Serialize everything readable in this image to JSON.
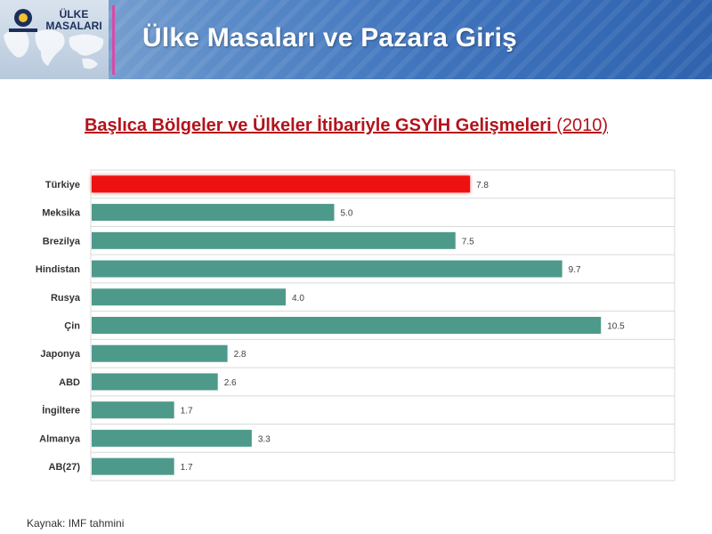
{
  "header": {
    "logo_text_line1": "ÜLKE",
    "logo_text_line2": "MASALARI",
    "title": "Ülke Masaları ve Pazara Giriş"
  },
  "chart_data": {
    "type": "bar",
    "orientation": "horizontal",
    "title": "Başlıca Bölgeler ve Ülkeler İtibariyle GSYİH Gelişmeleri",
    "title_suffix": "(2010)",
    "categories": [
      "Türkiye",
      "Meksika",
      "Brezilya",
      "Hindistan",
      "Rusya",
      "Çin",
      "Japonya",
      "ABD",
      "İngiltere",
      "Almanya",
      "AB(27)"
    ],
    "values": [
      7.8,
      5.0,
      7.5,
      9.7,
      4.0,
      10.5,
      2.8,
      2.6,
      1.7,
      3.3,
      1.7
    ],
    "labels": [
      "7.8",
      "5.0",
      "7.5",
      "9.7",
      "4.0",
      "10.5",
      "2.8",
      "2.6",
      "1.7",
      "3.3",
      "1.7"
    ],
    "highlight": "Türkiye",
    "colors": {
      "default": "#4e9a8a",
      "highlight": "#ee1111"
    },
    "xlim": [
      0,
      12
    ],
    "grid": true,
    "xlabel": "",
    "ylabel": ""
  },
  "footer": {
    "source": "Kaynak: IMF tahmini"
  }
}
